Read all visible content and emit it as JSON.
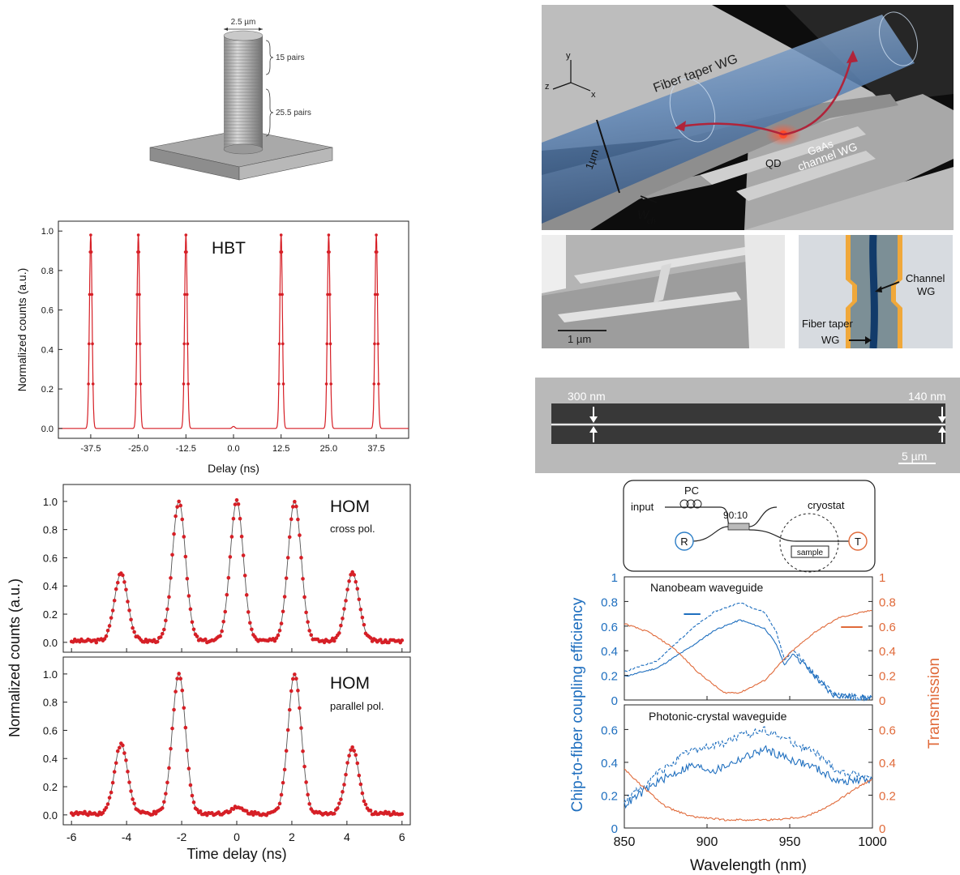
{
  "pillar": {
    "width_label": "2.5 µm",
    "top_label": "15 pairs",
    "bottom_label": "25.5 pairs"
  },
  "device_3d": {
    "labels": [
      "Fiber taper WG",
      "GaAs",
      "channel WG",
      "QD",
      "1µm",
      "W",
      "ch",
      "x",
      "y",
      "z"
    ]
  },
  "sem": {
    "scale_label": "1 µm",
    "channel_label_1": "Channel",
    "channel_label_2": "WG",
    "taper_label_1": "Fiber taper",
    "taper_label_2": "WG"
  },
  "nanobeam_sem": {
    "left_label": "300 nm",
    "right_label": "140 nm",
    "scale_label": "5 µm"
  },
  "schematic": {
    "pc": "PC",
    "input": "input",
    "splitter": "90:10",
    "cryostat": "cryostat",
    "r": "R",
    "t": "T",
    "sample": "sample"
  },
  "chart_data": [
    {
      "type": "line",
      "id": "hbt",
      "title": "HBT",
      "xlabel": "Delay (ns)",
      "ylabel": "Normalized counts (a.u.)",
      "xlim": [
        -46,
        46
      ],
      "ylim": [
        -0.05,
        1.05
      ],
      "xticks": [
        -37.5,
        -25.0,
        -12.5,
        0.0,
        12.5,
        25.0,
        37.5
      ],
      "xtick_labels": [
        "-37.5",
        "-25.0",
        "-12.5",
        "0.0",
        "12.5",
        "25.0",
        "37.5"
      ],
      "yticks": [
        0.0,
        0.2,
        0.4,
        0.6,
        0.8,
        1.0
      ],
      "ytick_labels": [
        "0.0",
        "0.2",
        "0.4",
        "0.6",
        "0.8",
        "1.0"
      ],
      "peaks": [
        {
          "x": -37.5,
          "y": 0.98
        },
        {
          "x": -25.0,
          "y": 0.98
        },
        {
          "x": -12.5,
          "y": 0.98
        },
        {
          "x": 0.0,
          "y": 0.01
        },
        {
          "x": 12.5,
          "y": 0.98
        },
        {
          "x": 25.0,
          "y": 0.98
        },
        {
          "x": 37.5,
          "y": 0.98
        }
      ],
      "color": "#d61f26"
    },
    {
      "type": "line",
      "id": "hom",
      "ylabel": "Normalized counts (a.u.)",
      "xlabel": "Time delay (ns)",
      "xlim": [
        -6.3,
        6.3
      ],
      "ylim": [
        -0.07,
        1.12
      ],
      "xticks": [
        -6,
        -4,
        -2,
        0,
        2,
        4,
        6
      ],
      "xtick_labels": [
        "-6",
        "-4",
        "-2",
        "0",
        "2",
        "4",
        "6"
      ],
      "yticks": [
        0.0,
        0.2,
        0.4,
        0.6,
        0.8,
        1.0
      ],
      "ytick_labels": [
        "0.0",
        "0.2",
        "0.4",
        "0.6",
        "0.8",
        "1.0"
      ],
      "color": "#d61f26",
      "panels": [
        {
          "title": "HOM",
          "subtitle": "cross pol.",
          "peaks": [
            {
              "x": -4.2,
              "y": 0.48
            },
            {
              "x": -2.1,
              "y": 0.99
            },
            {
              "x": 0.0,
              "y": 0.99
            },
            {
              "x": 2.1,
              "y": 0.99
            },
            {
              "x": 4.2,
              "y": 0.48
            }
          ]
        },
        {
          "title": "HOM",
          "subtitle": "parallel pol.",
          "peaks": [
            {
              "x": -4.2,
              "y": 0.49
            },
            {
              "x": -2.1,
              "y": 0.99
            },
            {
              "x": 0.0,
              "y": 0.04
            },
            {
              "x": 2.1,
              "y": 0.99
            },
            {
              "x": 4.2,
              "y": 0.46
            }
          ]
        }
      ]
    },
    {
      "type": "line",
      "id": "coupling",
      "xlabel": "Wavelength (nm)",
      "ylabel": "Chip-to-fiber coupling efficiency",
      "ylabel_right": "Transmission",
      "xlim": [
        850,
        1000
      ],
      "xticks": [
        850,
        900,
        950,
        1000
      ],
      "xtick_labels": [
        "850",
        "900",
        "950",
        "1000"
      ],
      "left_color": "#1f6fbf",
      "right_color": "#e06a3a",
      "panels": [
        {
          "title": "Nanobeam waveguide",
          "ylim": [
            0,
            1
          ],
          "yticks": [
            0,
            0.2,
            0.4,
            0.6,
            0.8,
            1
          ],
          "ytick_labels": [
            "0",
            "0.2",
            "0.4",
            "0.6",
            "0.8",
            "1"
          ],
          "series": [
            {
              "style": "solid",
              "axis": "left",
              "x": [
                850,
                870,
                890,
                905,
                920,
                935,
                942,
                947,
                952,
                960,
                975,
                990,
                1000
              ],
              "y": [
                0.19,
                0.26,
                0.43,
                0.57,
                0.65,
                0.58,
                0.45,
                0.28,
                0.38,
                0.27,
                0.05,
                0.02,
                0.01
              ]
            },
            {
              "style": "dashed",
              "axis": "left",
              "x": [
                850,
                870,
                890,
                905,
                920,
                935,
                942,
                947,
                952,
                960,
                975,
                990,
                1000
              ],
              "y": [
                0.23,
                0.32,
                0.57,
                0.72,
                0.79,
                0.71,
                0.55,
                0.32,
                0.41,
                0.28,
                0.06,
                0.02,
                0.01
              ]
            },
            {
              "style": "solid",
              "axis": "right",
              "x": [
                850,
                865,
                880,
                895,
                910,
                920,
                935,
                950,
                965,
                980,
                1000
              ],
              "y": [
                0.62,
                0.55,
                0.42,
                0.22,
                0.06,
                0.06,
                0.16,
                0.38,
                0.55,
                0.67,
                0.73
              ]
            }
          ]
        },
        {
          "title": "Photonic-crystal waveguide",
          "ylim": [
            0,
            0.75
          ],
          "yticks": [
            0,
            0.2,
            0.4,
            0.6
          ],
          "ytick_labels": [
            "0",
            "0.2",
            "0.4",
            "0.6"
          ],
          "series": [
            {
              "style": "solid",
              "axis": "left",
              "x": [
                850,
                870,
                890,
                905,
                920,
                935,
                950,
                965,
                980,
                1000
              ],
              "y": [
                0.14,
                0.28,
                0.38,
                0.35,
                0.42,
                0.48,
                0.42,
                0.37,
                0.28,
                0.3
              ]
            },
            {
              "style": "dashed",
              "axis": "left",
              "x": [
                850,
                870,
                890,
                905,
                920,
                935,
                950,
                965,
                980,
                1000
              ],
              "y": [
                0.16,
                0.33,
                0.47,
                0.5,
                0.56,
                0.6,
                0.53,
                0.46,
                0.34,
                0.31
              ]
            },
            {
              "style": "solid",
              "axis": "right",
              "x": [
                850,
                860,
                875,
                890,
                910,
                940,
                960,
                975,
                990,
                1000
              ],
              "y": [
                0.36,
                0.26,
                0.13,
                0.07,
                0.05,
                0.05,
                0.07,
                0.14,
                0.24,
                0.3
              ]
            }
          ]
        }
      ]
    }
  ]
}
